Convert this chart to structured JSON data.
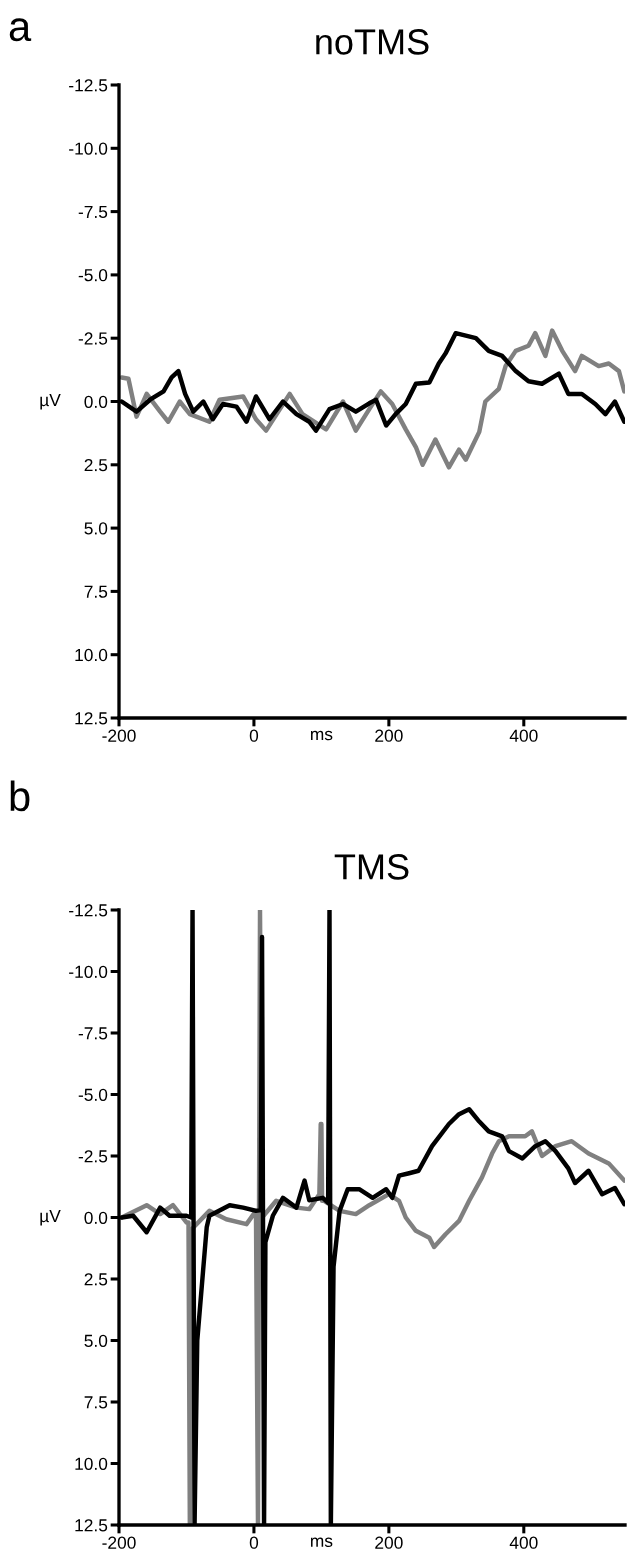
{
  "chart_data": [
    {
      "type": "line",
      "title": "noTMS",
      "xlabel": "ms",
      "ylabel": "µV",
      "annotations": [
        "a"
      ],
      "xlim": [
        -200,
        550
      ],
      "ylim": [
        12.5,
        -12.5
      ],
      "xticks": [
        -200,
        0,
        200,
        400
      ],
      "yticks": [
        {
          "value": -12.5,
          "label": "-12.5"
        },
        {
          "value": -10,
          "label": "-10.0"
        },
        {
          "value": -7.5,
          "label": "-7.5"
        },
        {
          "value": -5,
          "label": "-5.0"
        },
        {
          "value": -2.5,
          "label": "-2.5"
        },
        {
          "value": 0,
          "label": "0.0"
        },
        {
          "value": 2.5,
          "label": "2.5"
        },
        {
          "value": 5,
          "label": "5.0"
        },
        {
          "value": 7.5,
          "label": "7.5"
        },
        {
          "value": 10,
          "label": "10.0"
        },
        {
          "value": 12.5,
          "label": "12.5"
        }
      ],
      "grid": false,
      "legend": false,
      "marker": "none",
      "line_style": "solid",
      "series": [
        {
          "color": "#808080",
          "x": [
            -196,
            -186,
            -174,
            -159,
            -139,
            -127,
            -110,
            -95,
            -66,
            -51,
            -16,
            3,
            18,
            53,
            72,
            107,
            132,
            151,
            171,
            188,
            205,
            225,
            240,
            250,
            269,
            289,
            304,
            314,
            334,
            343,
            363,
            373,
            388,
            407,
            417,
            432,
            442,
            457,
            476,
            486,
            511,
            526,
            541,
            549
          ],
          "values": [
            -0.95,
            -0.9,
            0.6,
            -0.3,
            0.4,
            0.8,
            0,
            0.5,
            0.8,
            -0.07,
            -0.2,
            0.7,
            1.15,
            -0.3,
            0.5,
            1.1,
            0,
            1.15,
            0.3,
            -0.4,
            0.1,
            1.1,
            1.8,
            2.5,
            1.5,
            2.6,
            1.9,
            2.3,
            1.2,
            0,
            -0.5,
            -1.4,
            -2,
            -2.2,
            -2.7,
            -1.8,
            -2.8,
            -2,
            -1.2,
            -1.8,
            -1.4,
            -1.5,
            -1.2,
            -0.4
          ]
        },
        {
          "color": "#000000",
          "x": [
            -196,
            -174,
            -154,
            -134,
            -122,
            -112,
            -102,
            -90,
            -75,
            -61,
            -46,
            -26,
            -11,
            3,
            23,
            43,
            63,
            82,
            92,
            112,
            132,
            151,
            171,
            181,
            196,
            210,
            225,
            240,
            260,
            274,
            284,
            299,
            314,
            329,
            348,
            368,
            388,
            407,
            427,
            452,
            466,
            486,
            506,
            521,
            535,
            549
          ],
          "values": [
            0,
            0.4,
            -0.07,
            -0.4,
            -0.95,
            -1.2,
            -0.3,
            0.4,
            0,
            0.7,
            0.1,
            0.2,
            0.8,
            -0.2,
            0.7,
            0,
            0.5,
            0.8,
            1.15,
            0.3,
            0.1,
            0.4,
            0.07,
            -0.07,
            0.95,
            0.5,
            0.1,
            -0.7,
            -0.75,
            -1.5,
            -1.9,
            -2.7,
            -2.6,
            -2.5,
            -2,
            -1.8,
            -1.2,
            -0.8,
            -0.7,
            -1.1,
            -0.3,
            -0.3,
            0.1,
            0.5,
            0,
            0.8
          ]
        }
      ]
    },
    {
      "type": "line",
      "title": "TMS",
      "xlabel": "ms",
      "ylabel": "µV",
      "annotations": [
        "b"
      ],
      "xlim": [
        -200,
        550
      ],
      "ylim": [
        12.5,
        -12.5
      ],
      "xticks": [
        -200,
        0,
        200,
        400
      ],
      "yticks": [
        {
          "value": -12.5,
          "label": "-12.5"
        },
        {
          "value": -10,
          "label": "-10.0"
        },
        {
          "value": -7.5,
          "label": "-7.5"
        },
        {
          "value": -5,
          "label": "-5.0"
        },
        {
          "value": -2.5,
          "label": "-2.5"
        },
        {
          "value": 0,
          "label": "0.0"
        },
        {
          "value": 2.5,
          "label": "2.5"
        },
        {
          "value": 5,
          "label": "5.0"
        },
        {
          "value": 7.5,
          "label": "7.5"
        },
        {
          "value": 10,
          "label": "10.0"
        },
        {
          "value": 12.5,
          "label": "12.5"
        }
      ],
      "grid": false,
      "legend": false,
      "marker": "none",
      "line_style": "solid",
      "series": [
        {
          "color": "#808080",
          "x": [
            -196,
            -159,
            -139,
            -120,
            -100,
            -97,
            -95,
            -93,
            -66,
            -41,
            -11,
            3,
            6,
            9,
            12,
            33,
            63,
            82,
            97,
            99,
            100,
            101,
            104,
            127,
            151,
            171,
            200,
            215,
            225,
            240,
            260,
            267,
            284,
            304,
            319,
            338,
            353,
            363,
            378,
            402,
            412,
            427,
            447,
            471,
            496,
            526,
            549
          ],
          "values": [
            0,
            -0.5,
            -0.14,
            -0.5,
            0.2,
            0.2,
            12.5,
            0.5,
            -0.27,
            0.07,
            0.27,
            -0.27,
            12.5,
            -12.5,
            0,
            -0.68,
            -0.4,
            -0.34,
            -0.95,
            -3.8,
            -3.8,
            -0.68,
            -0.68,
            -0.27,
            -0.14,
            -0.5,
            -0.95,
            -0.68,
            0,
            0.54,
            0.82,
            1.2,
            0.68,
            0.14,
            -0.68,
            -1.63,
            -2.6,
            -3.1,
            -3.3,
            -3.3,
            -3.5,
            -2.5,
            -2.9,
            -3.1,
            -2.6,
            -2.2,
            -1.5
          ]
        },
        {
          "color": "#000000",
          "x": [
            -196,
            -179,
            -159,
            -139,
            -125,
            -100,
            -93,
            -91,
            -88,
            -84,
            -70,
            -66,
            -36,
            -16,
            3,
            10,
            12,
            15,
            17,
            28,
            43,
            63,
            75,
            82,
            102,
            110,
            112,
            114,
            118,
            127,
            139,
            156,
            176,
            196,
            205,
            215,
            230,
            244,
            264,
            289,
            304,
            319,
            334,
            348,
            368,
            378,
            398,
            417,
            432,
            447,
            466,
            476,
            496,
            516,
            535,
            549
          ],
          "values": [
            0,
            -0.07,
            0.6,
            -0.4,
            -0.07,
            -0.07,
            0,
            -12.5,
            12.5,
            5,
            0.4,
            -0.07,
            -0.5,
            -0.4,
            -0.27,
            -0.3,
            -11.4,
            12.5,
            1,
            -0.07,
            -0.8,
            -0.4,
            -1.5,
            -0.7,
            -0.8,
            -0.6,
            -12.5,
            12.5,
            2,
            -0.27,
            -1.15,
            -1.15,
            -0.8,
            -1.15,
            -0.8,
            -1.7,
            -1.8,
            -1.9,
            -2.9,
            -3.8,
            -4.2,
            -4.4,
            -3.9,
            -3.5,
            -3.3,
            -2.7,
            -2.4,
            -2.9,
            -3.1,
            -2.7,
            -2,
            -1.4,
            -1.9,
            -0.95,
            -1.2,
            -0.54
          ]
        }
      ]
    }
  ]
}
